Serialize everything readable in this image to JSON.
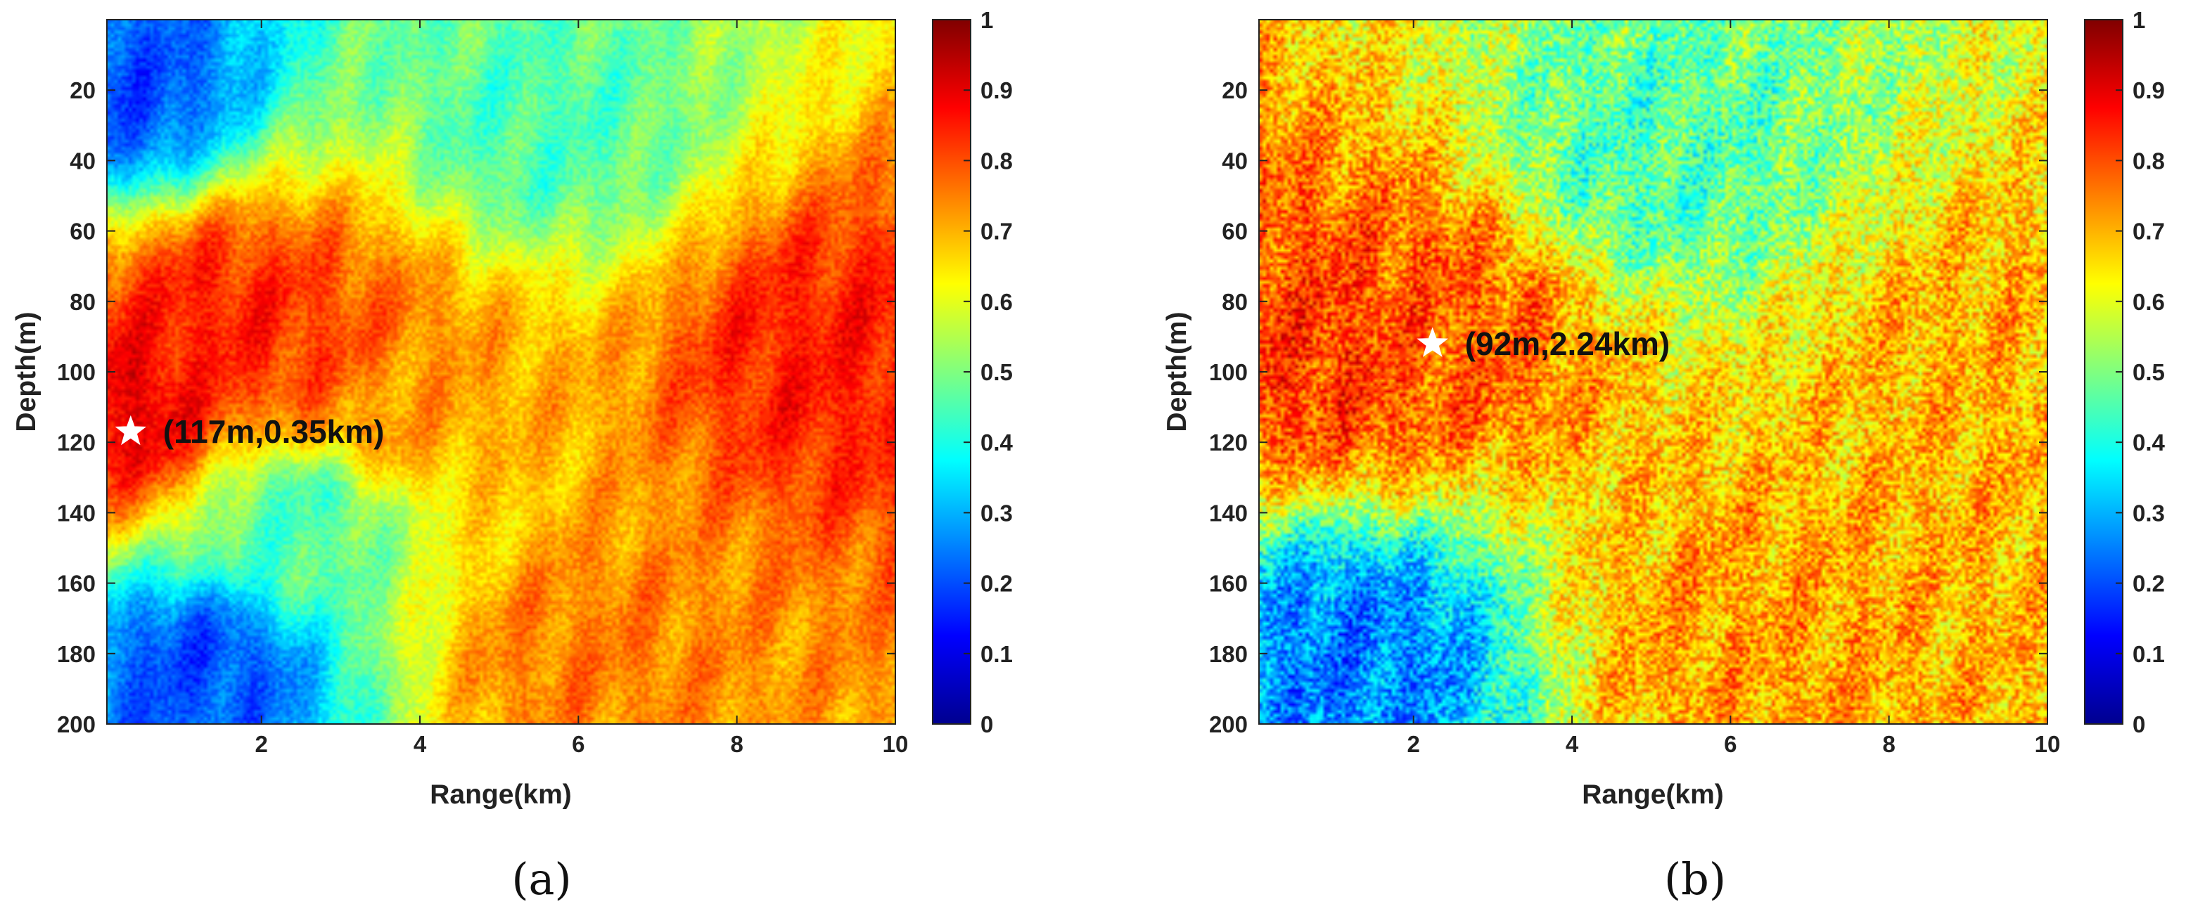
{
  "chart_data": [
    {
      "type": "heatmap",
      "panel_label": "(a)",
      "xlabel": "Range(km)",
      "ylabel": "Depth(m)",
      "xlim": [
        0.05,
        10
      ],
      "ylim": [
        0,
        200
      ],
      "y_inverted": true,
      "xticks": [
        2,
        4,
        6,
        8,
        10
      ],
      "yticks": [
        20,
        40,
        60,
        80,
        100,
        120,
        140,
        160,
        180,
        200
      ],
      "colorbar": {
        "colormap": "jet",
        "range": [
          0,
          1
        ],
        "ticks": [
          0,
          0.1,
          0.2,
          0.3,
          0.4,
          0.5,
          0.6,
          0.7,
          0.8,
          0.9,
          1
        ]
      },
      "peak": {
        "depth_m": 117,
        "range_km": 0.35,
        "label": "(117m,0.35km)",
        "marker": "white-star"
      },
      "regions": [
        {
          "range_km": 0.3,
          "depth_m": 110,
          "value": 0.9
        },
        {
          "range_km": 1.5,
          "depth_m": 85,
          "value": 0.85
        },
        {
          "range_km": 2.5,
          "depth_m": 95,
          "value": 0.82
        },
        {
          "range_km": 3.5,
          "depth_m": 110,
          "value": 0.72
        },
        {
          "range_km": 9.2,
          "depth_m": 95,
          "value": 0.85
        },
        {
          "range_km": 6.0,
          "depth_m": 180,
          "value": 0.75
        },
        {
          "range_km": 1.2,
          "depth_m": 185,
          "value": 0.2
        },
        {
          "range_km": 0.2,
          "depth_m": 20,
          "value": 0.2
        },
        {
          "range_km": 5.5,
          "depth_m": 30,
          "value": 0.45
        },
        {
          "range_km": 2.5,
          "depth_m": 140,
          "value": 0.45
        }
      ]
    },
    {
      "type": "heatmap",
      "panel_label": "(b)",
      "xlabel": "Range(km)",
      "ylabel": "Depth(m)",
      "xlim": [
        0.05,
        10
      ],
      "ylim": [
        0,
        200
      ],
      "y_inverted": true,
      "xticks": [
        2,
        4,
        6,
        8,
        10
      ],
      "yticks": [
        20,
        40,
        60,
        80,
        100,
        120,
        140,
        160,
        180,
        200
      ],
      "colorbar": {
        "colormap": "jet",
        "range": [
          0,
          1
        ],
        "ticks": [
          0,
          0.1,
          0.2,
          0.3,
          0.4,
          0.5,
          0.6,
          0.7,
          0.8,
          0.9,
          1
        ]
      },
      "peak": {
        "depth_m": 92,
        "range_km": 2.24,
        "label": "(92m,2.24km)",
        "marker": "white-star"
      },
      "regions": [
        {
          "range_km": 0.8,
          "depth_m": 95,
          "value": 0.82
        },
        {
          "range_km": 2.3,
          "depth_m": 85,
          "value": 0.78
        },
        {
          "range_km": 1.2,
          "depth_m": 180,
          "value": 0.25
        },
        {
          "range_km": 6.0,
          "depth_m": 175,
          "value": 0.72
        },
        {
          "range_km": 9.3,
          "depth_m": 100,
          "value": 0.7
        },
        {
          "range_km": 5.0,
          "depth_m": 40,
          "value": 0.45
        }
      ]
    }
  ]
}
